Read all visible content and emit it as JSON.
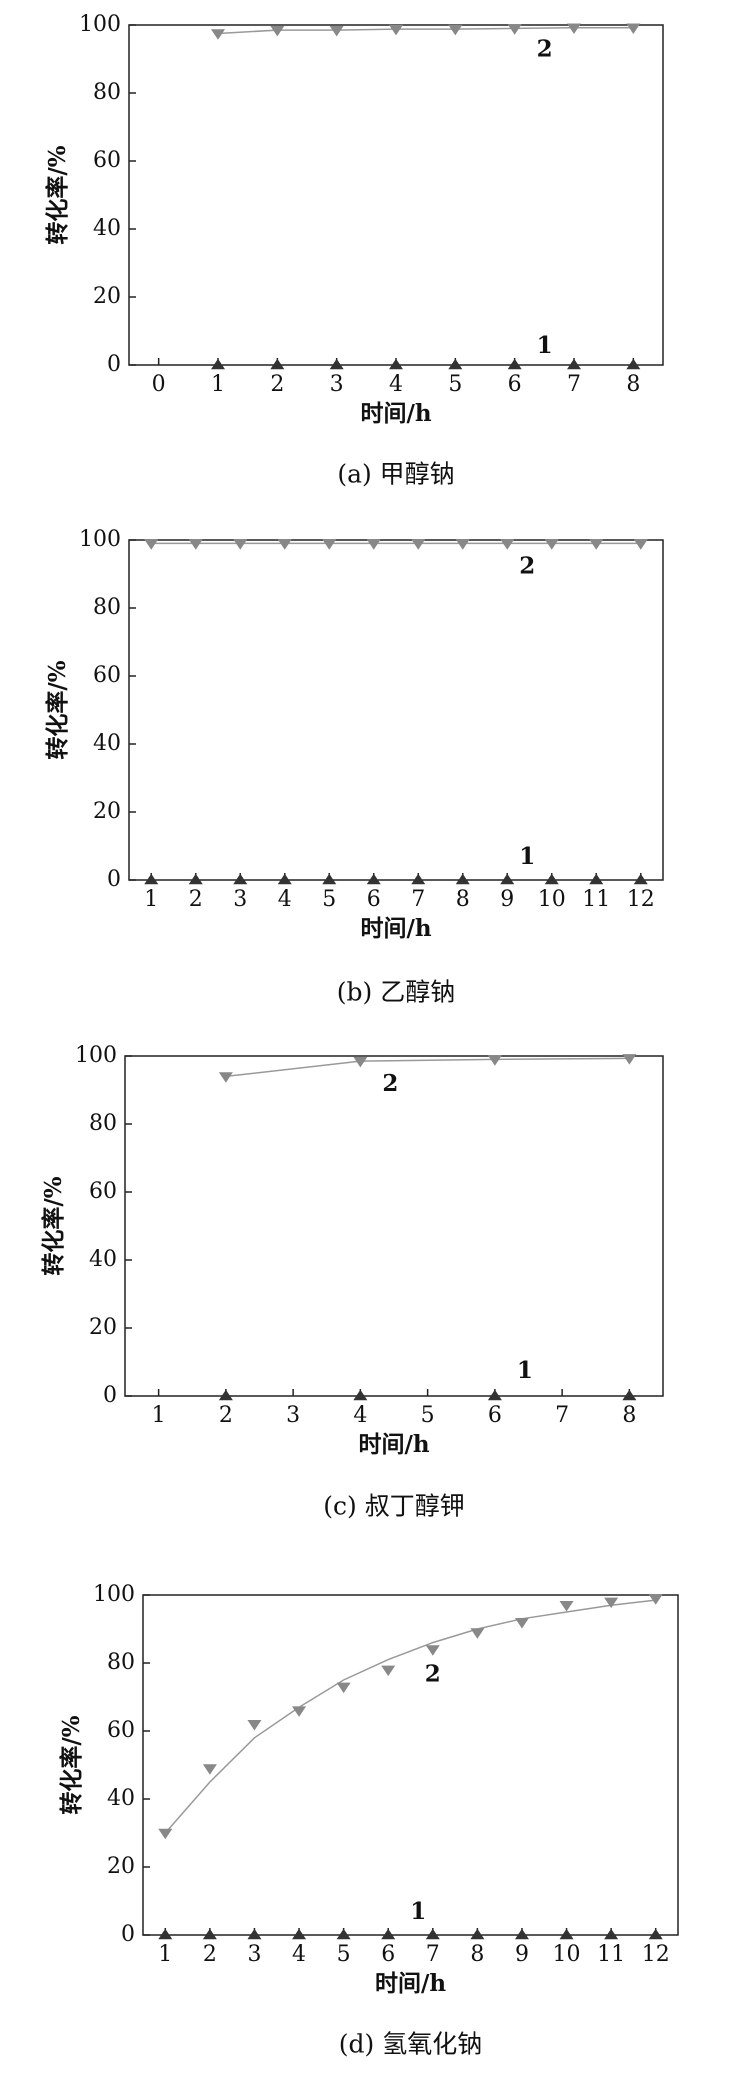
{
  "chart_data": [
    {
      "type": "scatter",
      "title": "(a) 甲醇钠",
      "x_label": "时间/h",
      "y_label": "转化率/%",
      "x": [
        1,
        2,
        3,
        4,
        5,
        6,
        7,
        8
      ],
      "xlim": [
        -0.5,
        8.5
      ],
      "xticks": [
        0,
        1,
        2,
        3,
        4,
        5,
        6,
        7,
        8
      ],
      "ylim": [
        0,
        100
      ],
      "yticks": [
        0,
        20,
        40,
        60,
        80,
        100
      ],
      "series": [
        {
          "name": "1",
          "color": "#333333",
          "marker": "triangle-up",
          "values": [
            0,
            0,
            0,
            0,
            0,
            0,
            0,
            0
          ]
        },
        {
          "name": "2",
          "color": "#888888",
          "marker": "triangle-down",
          "values": [
            97.5,
            98.5,
            98.5,
            98.8,
            98.8,
            99,
            99.2,
            99.2
          ]
        }
      ]
    },
    {
      "type": "scatter",
      "title": "(b) 乙醇钠",
      "x_label": "时间/h",
      "y_label": "转化率/%",
      "x": [
        1,
        2,
        3,
        4,
        5,
        6,
        7,
        8,
        9,
        10,
        11,
        12
      ],
      "xlim": [
        0.5,
        12.5
      ],
      "xticks": [
        1,
        2,
        3,
        4,
        5,
        6,
        7,
        8,
        9,
        10,
        11,
        12
      ],
      "ylim": [
        0,
        100
      ],
      "yticks": [
        0,
        20,
        40,
        60,
        80,
        100
      ],
      "series": [
        {
          "name": "1",
          "color": "#333333",
          "marker": "triangle-up",
          "values": [
            0,
            0,
            0,
            0,
            0,
            0,
            0,
            0,
            0,
            0,
            0,
            0
          ]
        },
        {
          "name": "2",
          "color": "#888888",
          "marker": "triangle-down",
          "values": [
            99,
            99,
            99,
            99,
            99,
            99,
            99,
            99,
            99,
            99,
            99,
            99
          ]
        }
      ]
    },
    {
      "type": "scatter",
      "title": "(c) 叔丁醇钾",
      "x_label": "时间/h",
      "y_label": "转化率/%",
      "x": [
        2,
        4,
        6,
        8
      ],
      "xlim": [
        0.5,
        8.5
      ],
      "xticks": [
        1,
        2,
        3,
        4,
        5,
        6,
        7,
        8
      ],
      "ylim": [
        0,
        100
      ],
      "yticks": [
        0,
        20,
        40,
        60,
        80,
        100
      ],
      "series": [
        {
          "name": "1",
          "color": "#333333",
          "marker": "triangle-up",
          "values": [
            0,
            0,
            0,
            0
          ]
        },
        {
          "name": "2",
          "color": "#888888",
          "marker": "triangle-down",
          "values": [
            94,
            98.5,
            99,
            99.3
          ]
        }
      ]
    },
    {
      "type": "scatter",
      "title": "(d) 氢氧化钠",
      "x_label": "时间/h",
      "y_label": "转化率/%",
      "x": [
        1,
        2,
        3,
        4,
        5,
        6,
        7,
        8,
        9,
        10,
        11,
        12
      ],
      "xlim": [
        0.5,
        12.5
      ],
      "xticks": [
        1,
        2,
        3,
        4,
        5,
        6,
        7,
        8,
        9,
        10,
        11,
        12
      ],
      "ylim": [
        0,
        100
      ],
      "yticks": [
        0,
        20,
        40,
        60,
        80,
        100
      ],
      "series": [
        {
          "name": "1",
          "color": "#333333",
          "marker": "triangle-up",
          "values": [
            0,
            0,
            0,
            0,
            0,
            0,
            0,
            0,
            0,
            0,
            0,
            0
          ]
        },
        {
          "name": "2",
          "color": "#888888",
          "marker": "triangle-down",
          "values": [
            30,
            49,
            62,
            66,
            73,
            78,
            84,
            89,
            92,
            97,
            98,
            99
          ],
          "fit_values": [
            30,
            45,
            58,
            67,
            75,
            81,
            86,
            90,
            93,
            95,
            97,
            98.5
          ]
        }
      ]
    }
  ]
}
